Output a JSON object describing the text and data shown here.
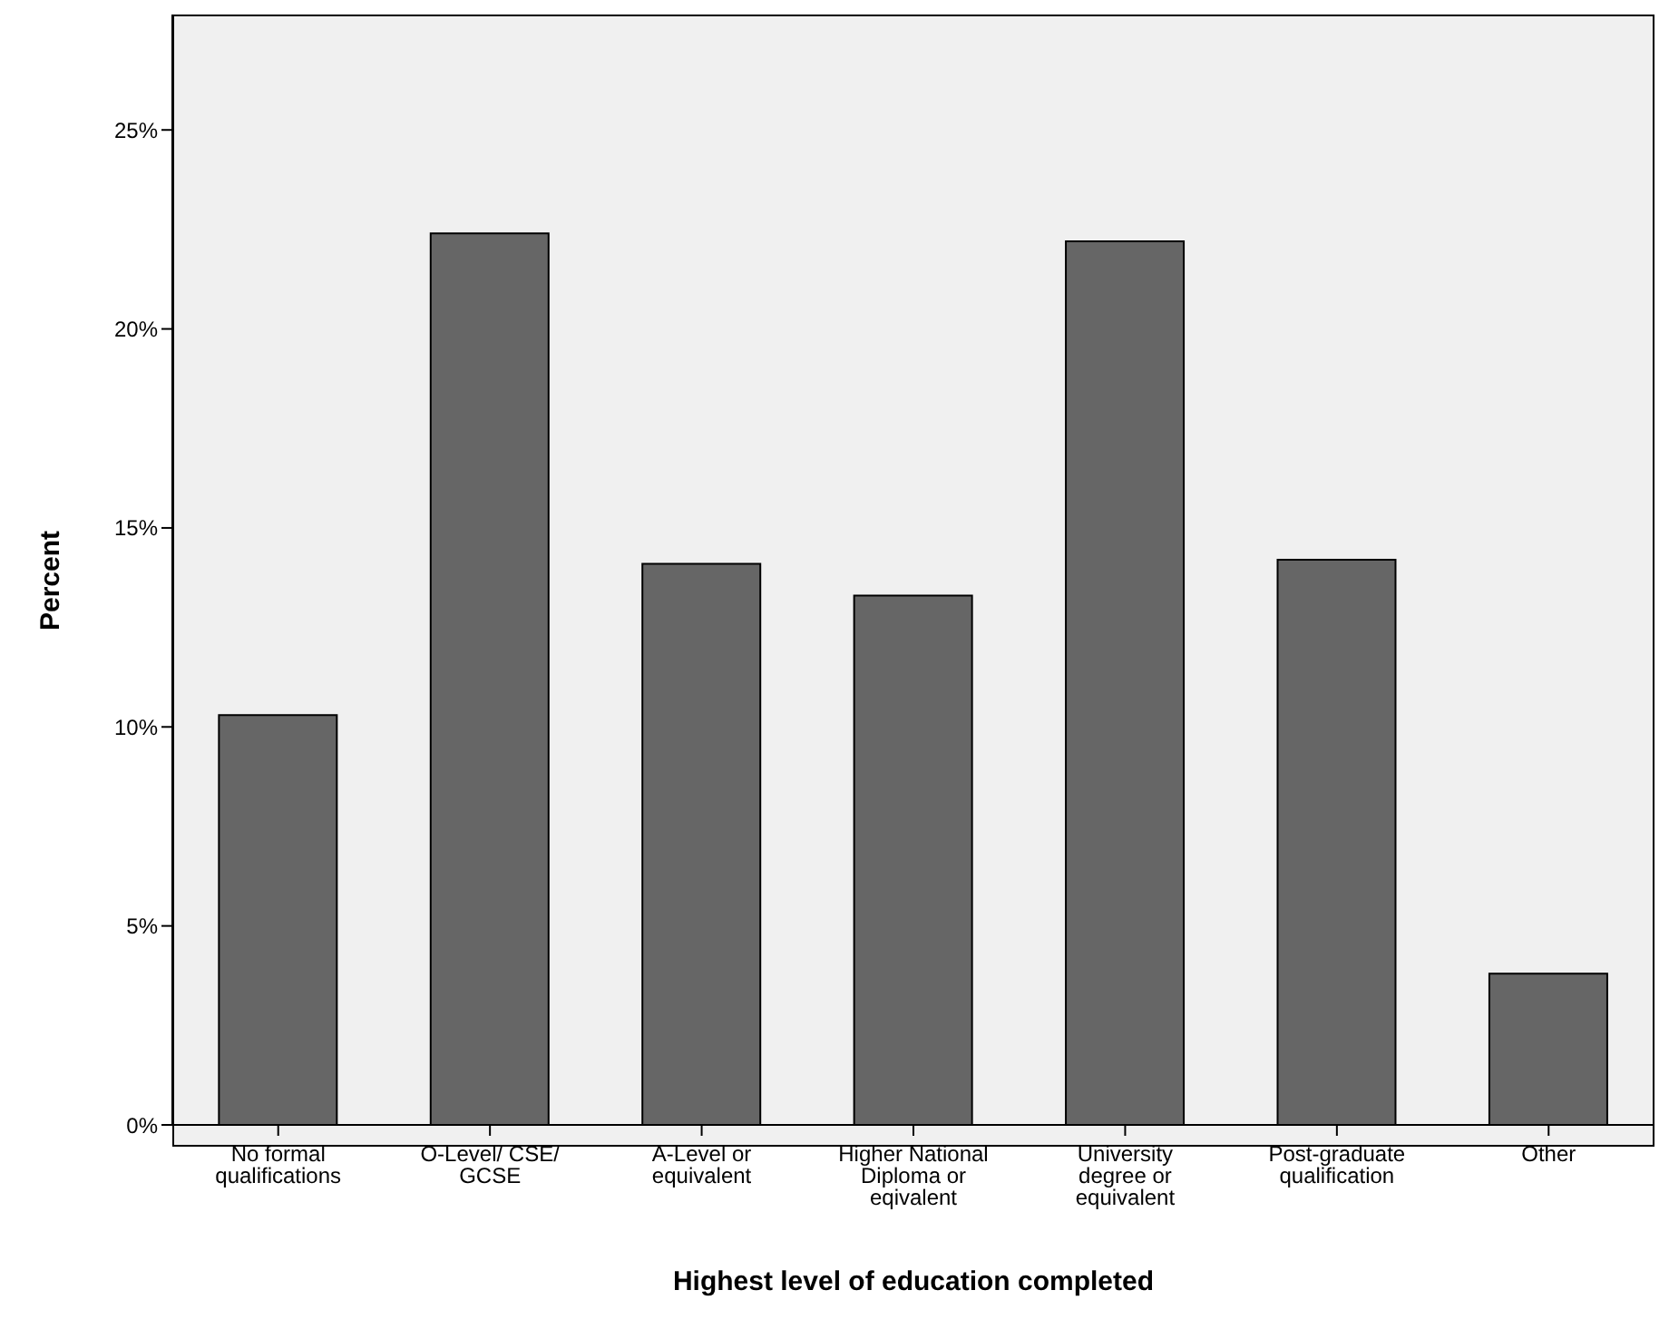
{
  "chart_data": {
    "type": "bar",
    "xlabel": "Highest level of education completed",
    "ylabel": "Percent",
    "categories": [
      "No formal qualifications",
      "O-Level/ CSE/ GCSE",
      "A-Level or equivalent",
      "Higher National Diploma or eqivalent",
      "University degree or equivalent",
      "Post-graduate qualification",
      "Other"
    ],
    "values": [
      10.3,
      22.4,
      14.1,
      13.3,
      22.2,
      14.2,
      3.8
    ],
    "color": "#666666",
    "ylim": [
      0,
      27.9
    ],
    "yticks": [
      {
        "value": 0,
        "label": "0%"
      },
      {
        "value": 5,
        "label": "5%"
      },
      {
        "value": 10,
        "label": "10%"
      },
      {
        "value": 15,
        "label": "15%"
      },
      {
        "value": 20,
        "label": "20%"
      },
      {
        "value": 25,
        "label": "25%"
      }
    ],
    "grid": false
  }
}
